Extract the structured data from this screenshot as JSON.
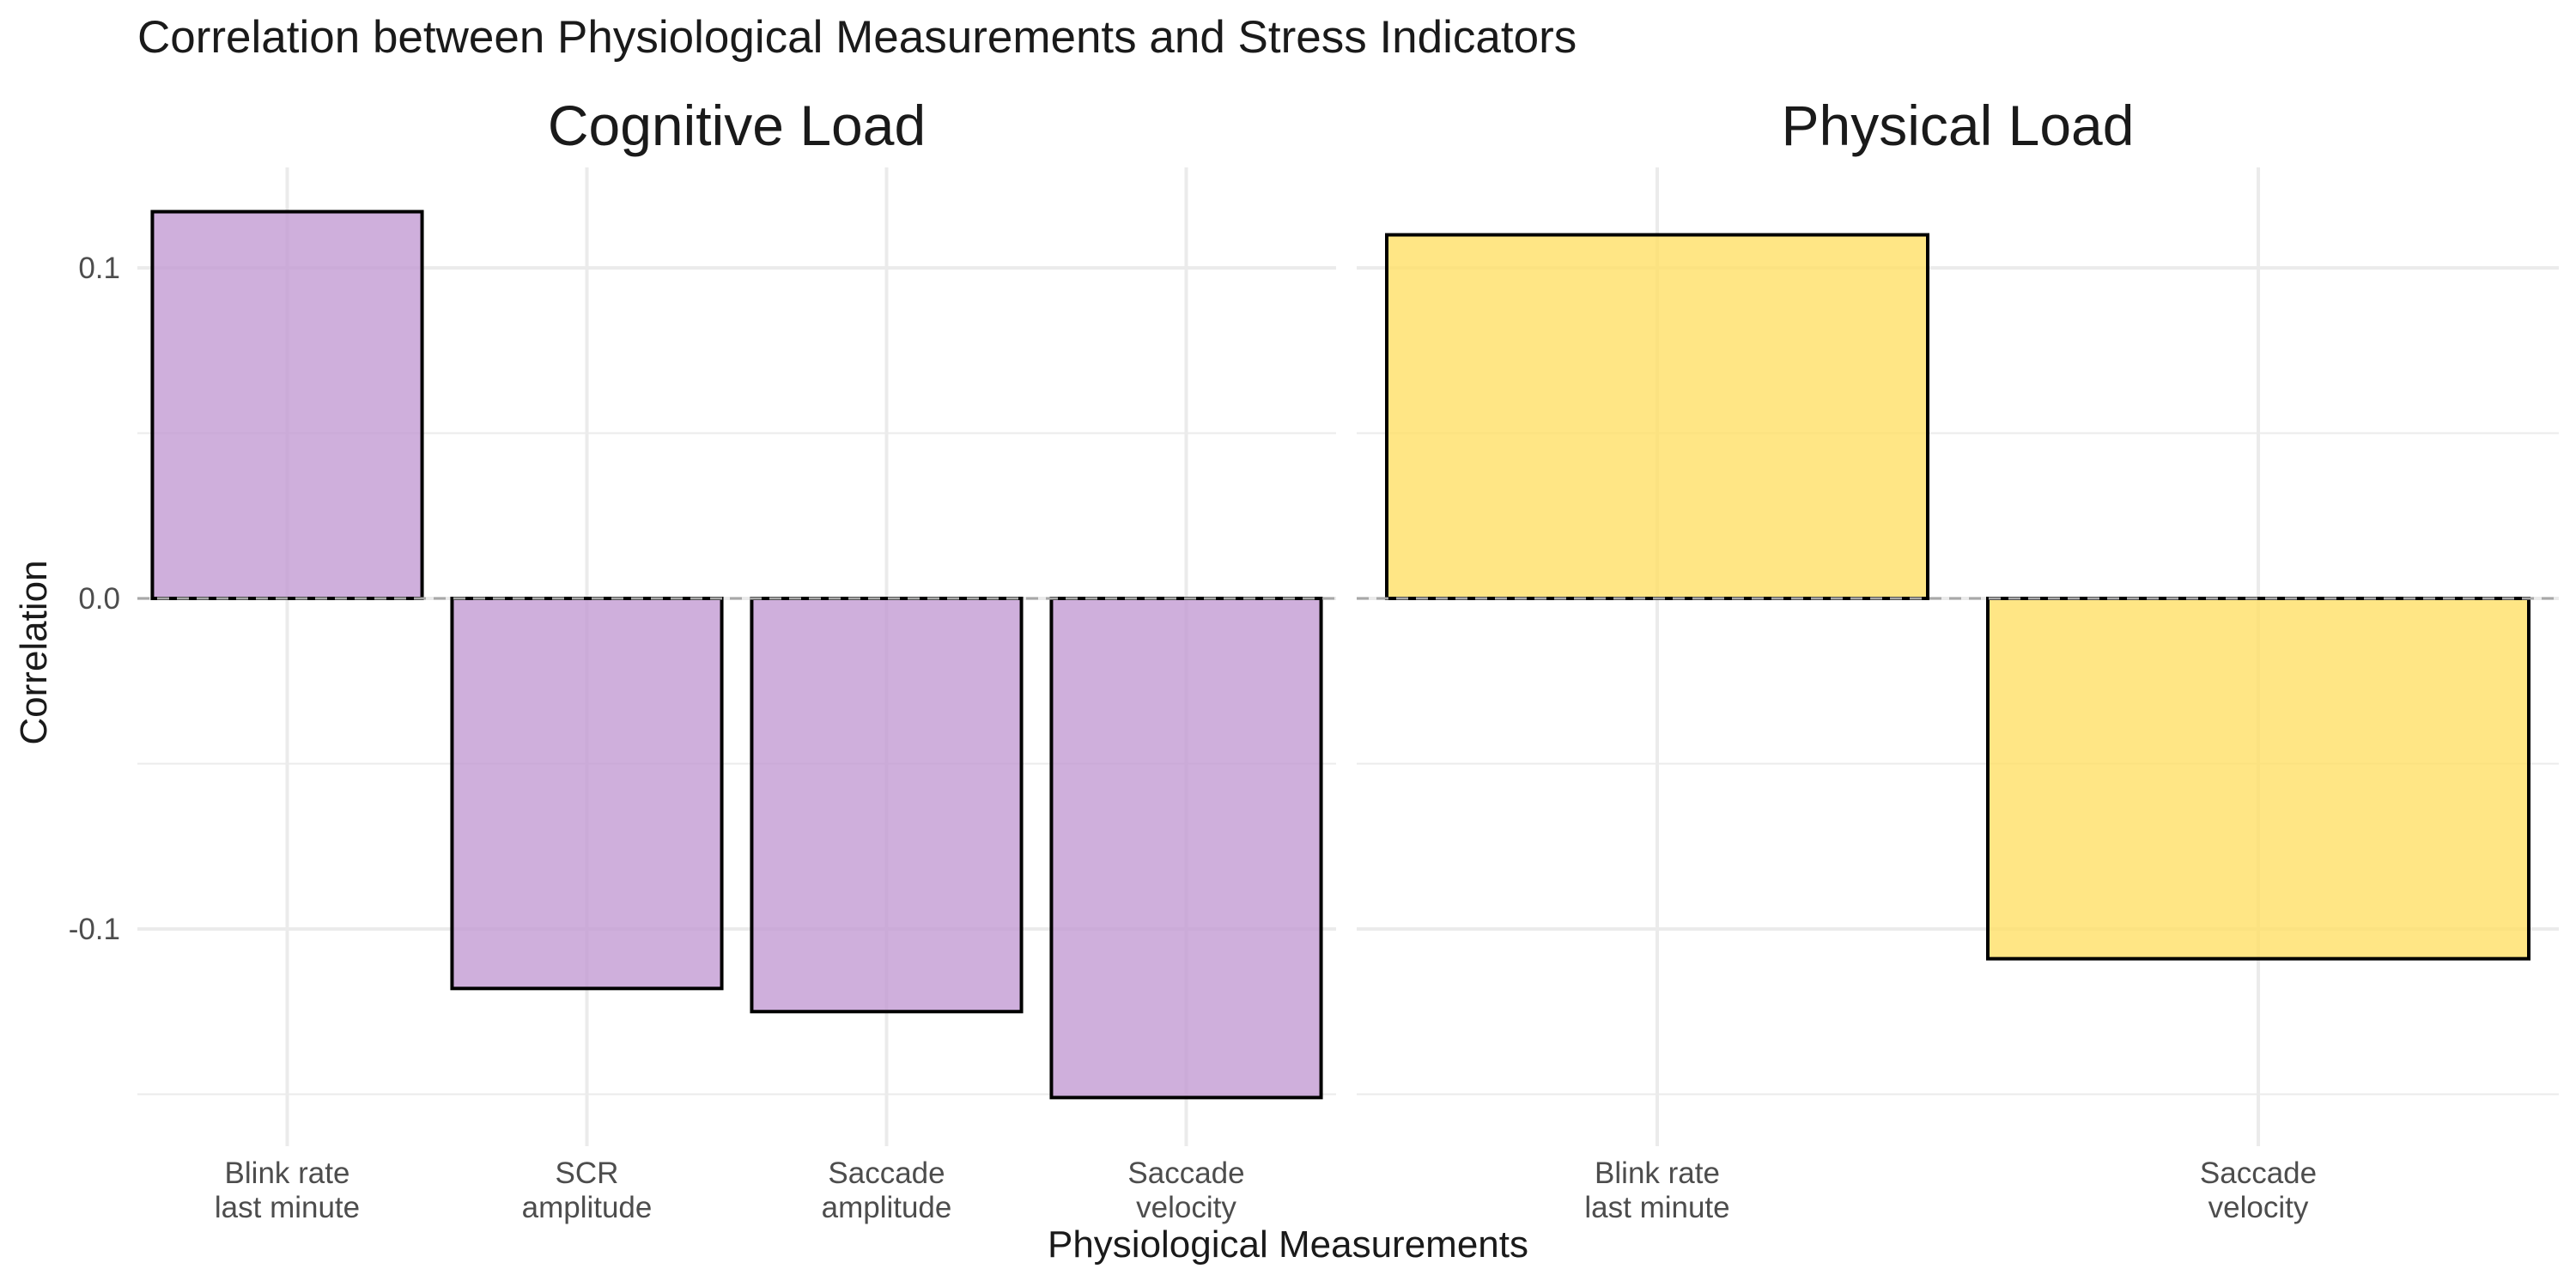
{
  "chart_data": {
    "type": "bar",
    "title": "Correlation between Physiological Measurements and Stress Indicators",
    "xlabel": "Physiological Measurements",
    "ylabel": "Correlation",
    "ylim": [
      -0.15,
      0.13
    ],
    "y_ticks": [
      0.1,
      0.0,
      -0.1
    ],
    "y_tick_labels": [
      "0.1",
      "0.0",
      "-0.1"
    ],
    "grid": true,
    "reference_line": {
      "y": 0,
      "style": "dashed"
    },
    "facets": [
      {
        "name": "Cognitive Load",
        "color": "#C39BD3",
        "categories": [
          "Blink rate\nlast minute",
          "SCR\namplitude",
          "Saccade\namplitude",
          "Saccade\nvelocity"
        ],
        "values": [
          0.117,
          -0.118,
          -0.125,
          -0.151
        ]
      },
      {
        "name": "Physical Load",
        "color": "#FFE066",
        "categories": [
          "Blink rate\nlast minute",
          "Saccade\nvelocity"
        ],
        "values": [
          0.11,
          -0.109
        ]
      }
    ]
  }
}
